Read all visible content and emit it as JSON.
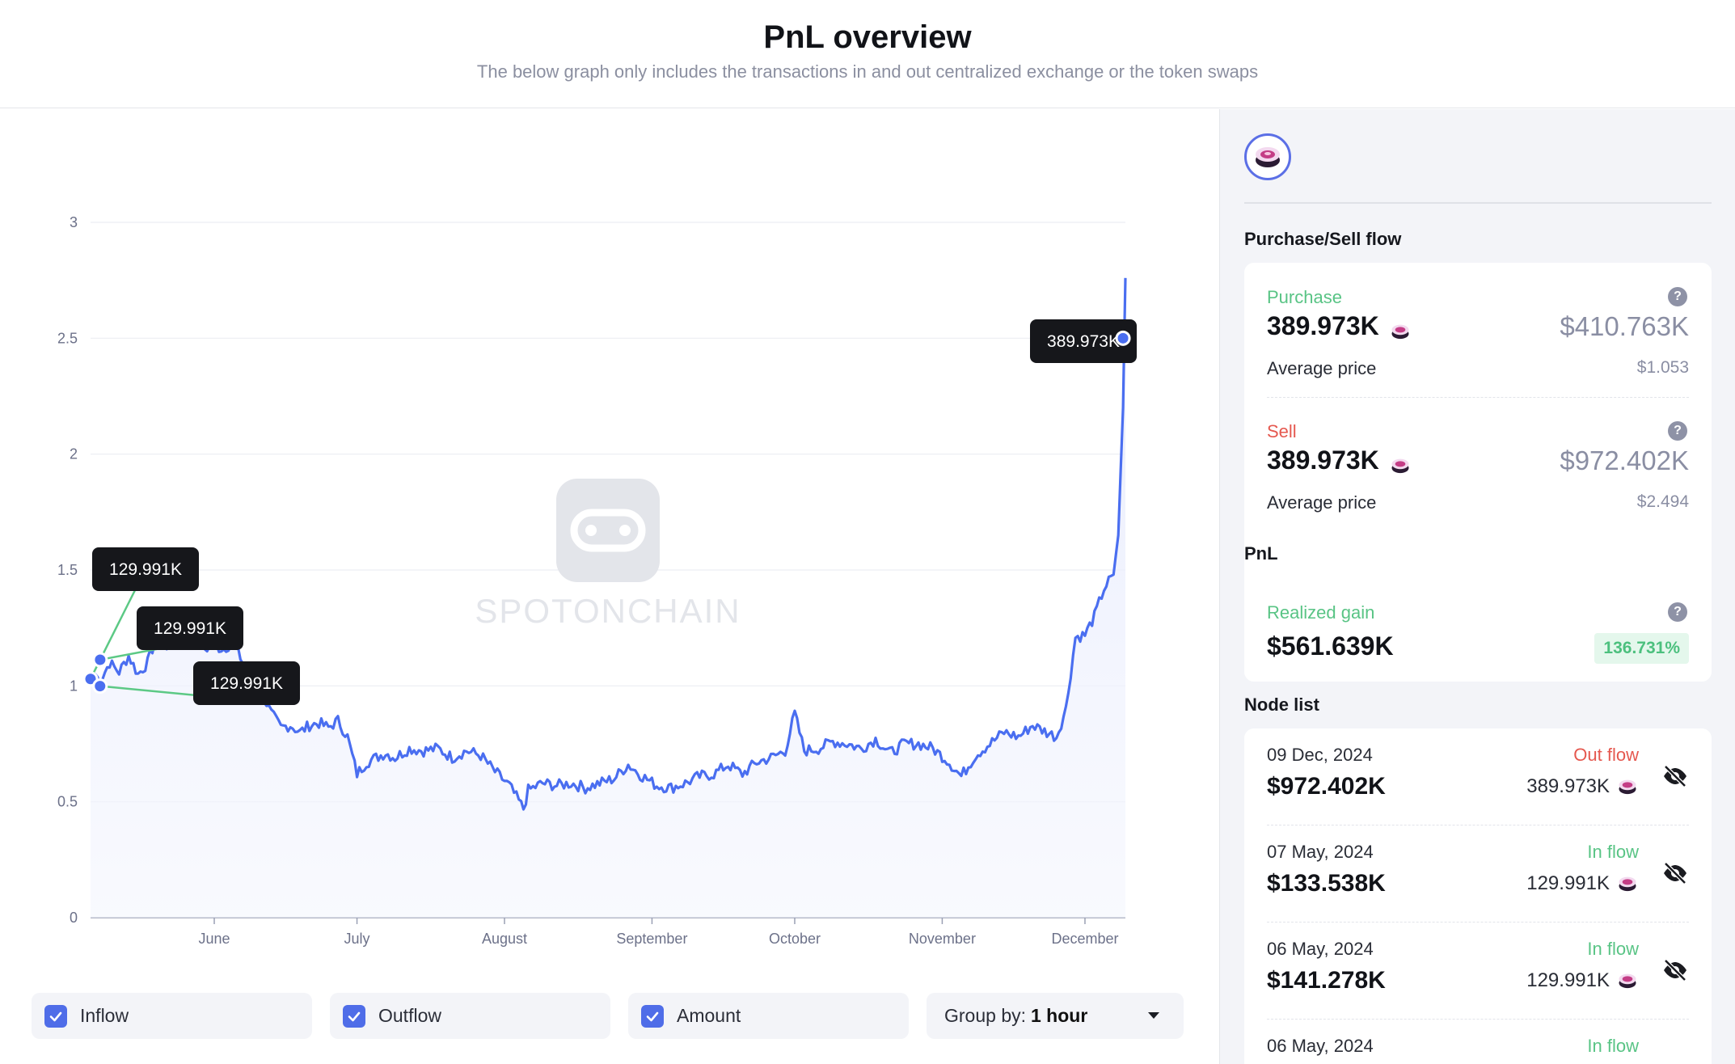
{
  "header": {
    "title": "PnL overview",
    "subtitle": "The below graph only includes the transactions in and out centralized exchange or the token swaps"
  },
  "watermark": "SPOTONCHAIN",
  "colors": {
    "line": "#4a6ef0",
    "area": "#eef1fd",
    "inflow": "#5cc985",
    "outflow": "#e75a4f",
    "tooltip_bg": "#16171b"
  },
  "chart_data": {
    "type": "line",
    "title": "",
    "xlabel": "",
    "ylabel": "",
    "ylim": [
      0,
      3
    ],
    "y_ticks": [
      "0",
      "0.5",
      "1",
      "1.5",
      "2",
      "2.5",
      "3"
    ],
    "x_ticks": [
      "June",
      "July",
      "August",
      "September",
      "October",
      "November",
      "December"
    ],
    "grid": true,
    "series": [
      {
        "x": [
          "2024-05-06",
          "2024-05-07",
          "2024-05-08",
          "2024-05-09",
          "2024-05-10",
          "2024-05-12",
          "2024-05-14",
          "2024-05-16",
          "2024-05-18",
          "2024-05-20",
          "2024-05-22",
          "2024-05-24",
          "2024-05-26",
          "2024-05-28",
          "2024-05-30",
          "2024-06-01",
          "2024-06-03",
          "2024-06-05",
          "2024-06-07",
          "2024-06-09",
          "2024-06-11",
          "2024-06-13",
          "2024-06-15",
          "2024-06-17",
          "2024-06-19",
          "2024-06-21",
          "2024-06-23",
          "2024-06-25",
          "2024-06-27",
          "2024-06-29",
          "2024-07-01",
          "2024-07-03",
          "2024-07-05",
          "2024-07-07",
          "2024-07-09",
          "2024-07-12",
          "2024-07-15",
          "2024-07-18",
          "2024-07-21",
          "2024-07-24",
          "2024-07-27",
          "2024-07-30",
          "2024-08-02",
          "2024-08-05",
          "2024-08-06",
          "2024-08-09",
          "2024-08-12",
          "2024-08-15",
          "2024-08-18",
          "2024-08-21",
          "2024-08-24",
          "2024-08-27",
          "2024-08-30",
          "2024-09-02",
          "2024-09-05",
          "2024-09-08",
          "2024-09-11",
          "2024-09-14",
          "2024-09-17",
          "2024-09-20",
          "2024-09-23",
          "2024-09-26",
          "2024-09-29",
          "2024-10-01",
          "2024-10-03",
          "2024-10-06",
          "2024-10-09",
          "2024-10-12",
          "2024-10-15",
          "2024-10-18",
          "2024-10-21",
          "2024-10-24",
          "2024-10-27",
          "2024-10-30",
          "2024-11-02",
          "2024-11-05",
          "2024-11-08",
          "2024-11-11",
          "2024-11-14",
          "2024-11-17",
          "2024-11-20",
          "2024-11-23",
          "2024-11-25",
          "2024-11-27",
          "2024-11-29",
          "2024-12-01",
          "2024-12-03",
          "2024-12-05",
          "2024-12-07",
          "2024-12-08",
          "2024-12-09",
          "2024-12-09T12"
        ],
        "values": [
          1.03,
          1.05,
          1.02,
          1.06,
          1.1,
          1.06,
          1.13,
          1.05,
          1.1,
          1.22,
          1.15,
          1.27,
          1.22,
          1.2,
          1.16,
          1.17,
          1.16,
          1.19,
          1.1,
          1.02,
          0.97,
          0.88,
          0.82,
          0.83,
          0.8,
          0.83,
          0.84,
          0.82,
          0.85,
          0.78,
          0.62,
          0.67,
          0.69,
          0.71,
          0.69,
          0.73,
          0.72,
          0.73,
          0.69,
          0.72,
          0.7,
          0.63,
          0.57,
          0.47,
          0.55,
          0.58,
          0.57,
          0.58,
          0.56,
          0.58,
          0.6,
          0.66,
          0.61,
          0.57,
          0.56,
          0.58,
          0.61,
          0.62,
          0.66,
          0.62,
          0.67,
          0.69,
          0.72,
          0.88,
          0.72,
          0.73,
          0.76,
          0.75,
          0.73,
          0.77,
          0.71,
          0.75,
          0.75,
          0.73,
          0.68,
          0.61,
          0.7,
          0.75,
          0.8,
          0.78,
          0.83,
          0.8,
          0.78,
          0.9,
          1.21,
          1.22,
          1.3,
          1.42,
          1.48,
          1.65,
          2.2,
          2.76
        ]
      }
    ],
    "tooltips": [
      {
        "label": "129.991K",
        "date": "2024-05-06",
        "value": 1.03,
        "type": "inflow"
      },
      {
        "label": "129.991K",
        "date": "2024-05-07",
        "value": 1.05,
        "type": "inflow"
      },
      {
        "label": "129.991K",
        "date": "2024-05-08",
        "value": 1.02,
        "type": "inflow"
      },
      {
        "label": "389.973K",
        "date": "2024-12-09",
        "value": 2.5,
        "type": "outflow"
      }
    ]
  },
  "controls": {
    "inflow_label": "Inflow",
    "outflow_label": "Outflow",
    "amount_label": "Amount",
    "group_by_label": "Group by:",
    "group_by_value": "1 hour"
  },
  "sidebar": {
    "token_icon": "token-icon",
    "purchase_sell_title": "Purchase/Sell flow",
    "purchase": {
      "label": "Purchase",
      "amount": "389.973K",
      "usd": "$410.763K",
      "avg_label": "Average price",
      "avg_price": "$1.053"
    },
    "sell": {
      "label": "Sell",
      "amount": "389.973K",
      "usd": "$972.402K",
      "avg_label": "Average price",
      "avg_price": "$2.494"
    },
    "pnl_title": "PnL",
    "realized": {
      "label": "Realized gain",
      "value": "$561.639K",
      "pct": "136.731%"
    },
    "node_list_title": "Node list",
    "nodes": [
      {
        "date": "09 Dec, 2024",
        "value": "$972.402K",
        "flow": "Out flow",
        "amount": "389.973K"
      },
      {
        "date": "07 May, 2024",
        "value": "$133.538K",
        "flow": "In flow",
        "amount": "129.991K"
      },
      {
        "date": "06 May, 2024",
        "value": "$141.278K",
        "flow": "In flow",
        "amount": "129.991K"
      },
      {
        "date": "06 May, 2024",
        "value": "",
        "flow": "In flow",
        "amount": ""
      }
    ]
  }
}
